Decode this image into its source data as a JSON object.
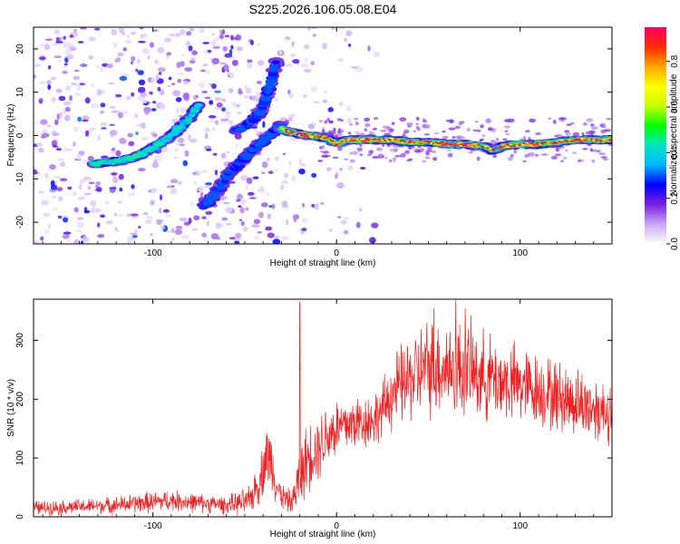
{
  "title": "S225.2026.106.05.08.E04",
  "chart_data": [
    {
      "type": "heatmap",
      "name": "spectrogram",
      "xlabel": "Height of straight line (km)",
      "ylabel": "Frequency (Hz)",
      "xlim": [
        -165,
        150
      ],
      "ylim": [
        -25,
        25
      ],
      "x_ticks": [
        -100,
        0,
        100
      ],
      "y_ticks": [
        -20,
        -10,
        0,
        10,
        20
      ],
      "x_tick_labels": [
        "-100",
        "0",
        "100"
      ],
      "y_tick_labels": [
        "-20",
        "-10",
        "0",
        "10",
        "20"
      ],
      "colorbar": {
        "label": "Normalized spectral amplitude",
        "range": [
          0,
          0.95
        ],
        "ticks": [
          0.0,
          0.2,
          0.4,
          0.6,
          0.8
        ],
        "tick_labels": [
          "0.0",
          "0.2",
          "0.4",
          "0.6",
          "0.8"
        ],
        "colors": [
          "#ffffff",
          "#c9a7f7",
          "#7a1fe0",
          "#0000ff",
          "#00b7ff",
          "#00e5c0",
          "#00ff00",
          "#c8ff00",
          "#ffff00",
          "#ffa500",
          "#ff2a00",
          "#ff0066"
        ]
      },
      "tracks": [
        {
          "name": "main-track",
          "points": [
            [
              -132,
              -6.5
            ],
            [
              -120,
              -6
            ],
            [
              -110,
              -5
            ],
            [
              -100,
              -3
            ],
            [
              -90,
              0
            ],
            [
              -85,
              2
            ],
            [
              -80,
              4
            ],
            [
              -75,
              7
            ]
          ],
          "peak": 0.45
        },
        {
          "name": "lower-branch",
          "points": [
            [
              -72,
              -16.5
            ],
            [
              -65,
              -13
            ],
            [
              -60,
              -9.5
            ],
            [
              -52,
              -6
            ],
            [
              -45,
              -3
            ],
            [
              -38,
              -0.5
            ],
            [
              -30,
              2.5
            ]
          ],
          "peak": 0.3
        },
        {
          "name": "upper-branch",
          "points": [
            [
              -55,
              1
            ],
            [
              -48,
              2.5
            ],
            [
              -42,
              5
            ],
            [
              -38,
              9
            ],
            [
              -35,
              13
            ],
            [
              -33,
              17
            ]
          ],
          "peak": 0.3
        },
        {
          "name": "central-track",
          "points": [
            [
              -30,
              1.5
            ],
            [
              -22,
              0.5
            ],
            [
              -15,
              0
            ],
            [
              -5,
              -0.5
            ],
            [
              0,
              -2
            ],
            [
              5,
              -1
            ],
            [
              10,
              -1
            ],
            [
              20,
              -1
            ],
            [
              30,
              -1
            ],
            [
              40,
              -1.5
            ],
            [
              50,
              -1.5
            ],
            [
              60,
              -2
            ],
            [
              70,
              -2
            ],
            [
              80,
              -2.5
            ],
            [
              85,
              -3.5
            ],
            [
              90,
              -2.5
            ],
            [
              100,
              -2
            ],
            [
              110,
              -2
            ],
            [
              120,
              -1.5
            ],
            [
              130,
              -1
            ],
            [
              140,
              -1
            ],
            [
              150,
              -1
            ]
          ],
          "peak": 0.95
        }
      ]
    },
    {
      "type": "line",
      "name": "snr",
      "xlabel": "Height of straight line (km)",
      "ylabel": "SNR (10 * v/v)",
      "xlim": [
        -165,
        150
      ],
      "ylim": [
        0,
        370
      ],
      "x_ticks": [
        -100,
        0,
        100
      ],
      "y_ticks": [
        0,
        100,
        200,
        300
      ],
      "x_tick_labels": [
        "-100",
        "0",
        "100"
      ],
      "y_tick_labels": [
        "0",
        "100",
        "200",
        "300"
      ],
      "color": "#ee2222",
      "envelope": {
        "x": [
          -165,
          -140,
          -120,
          -100,
          -90,
          -80,
          -60,
          -48,
          -42,
          -38,
          -35,
          -32,
          -28,
          -24,
          -20,
          -15,
          -10,
          -5,
          0,
          10,
          20,
          25,
          30,
          40,
          50,
          60,
          70,
          80,
          90,
          100,
          110,
          120,
          130,
          140,
          150
        ],
        "center": [
          15,
          17,
          20,
          25,
          28,
          25,
          20,
          25,
          60,
          105,
          90,
          45,
          30,
          25,
          70,
          105,
          120,
          140,
          150,
          160,
          165,
          180,
          210,
          235,
          255,
          255,
          250,
          240,
          230,
          225,
          215,
          205,
          195,
          185,
          180
        ],
        "spread": [
          15,
          15,
          18,
          22,
          22,
          20,
          18,
          30,
          45,
          70,
          60,
          35,
          25,
          25,
          70,
          70,
          70,
          70,
          65,
          60,
          55,
          60,
          75,
          90,
          100,
          100,
          100,
          90,
          85,
          80,
          75,
          75,
          70,
          70,
          65
        ]
      },
      "spikes": [
        [
          -20,
          365
        ],
        [
          65,
          370
        ],
        [
          70,
          355
        ],
        [
          53,
          355
        ]
      ]
    }
  ]
}
